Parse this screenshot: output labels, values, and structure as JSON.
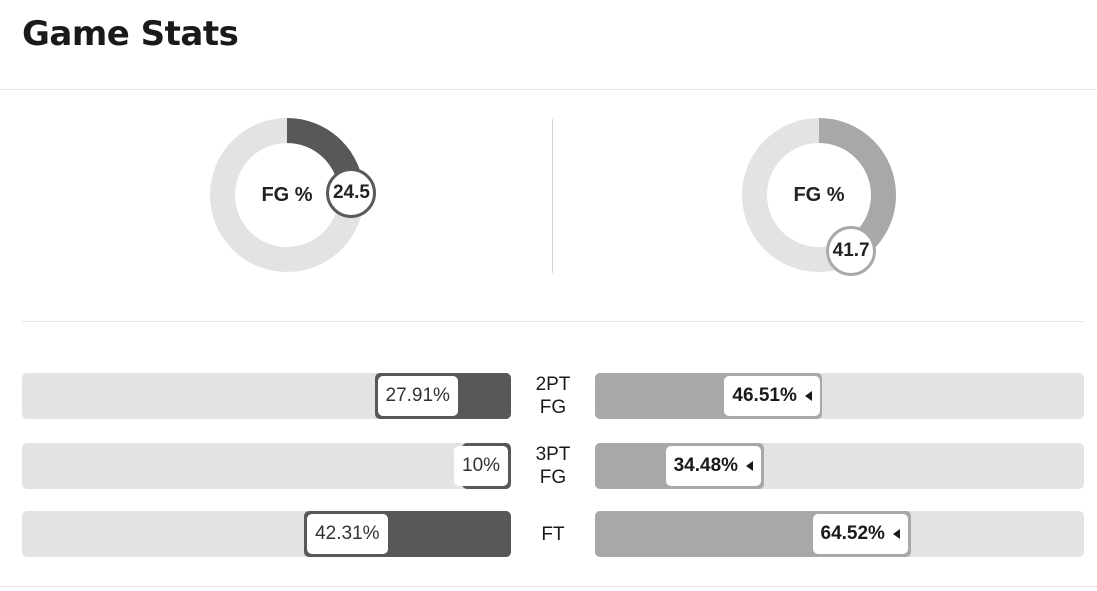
{
  "title": "Game Stats",
  "colors": {
    "left_team": "#585858",
    "right_team": "#a8a8a8",
    "track": "#e3e3e3"
  },
  "fg": {
    "label": "FG %",
    "left": {
      "value": "24.5",
      "pct": 24.5
    },
    "right": {
      "value": "41.7",
      "pct": 41.7
    }
  },
  "stats": [
    {
      "label_lines": [
        "2PT",
        "FG"
      ],
      "left": {
        "text": "27.91%",
        "pct": 27.91
      },
      "right": {
        "text": "46.51%",
        "pct": 46.51
      }
    },
    {
      "label_lines": [
        "3PT",
        "FG"
      ],
      "left": {
        "text": "10%",
        "pct": 10
      },
      "right": {
        "text": "34.48%",
        "pct": 34.48
      }
    },
    {
      "label_lines": [
        "FT"
      ],
      "left": {
        "text": "42.31%",
        "pct": 42.31
      },
      "right": {
        "text": "64.52%",
        "pct": 64.52
      }
    }
  ]
}
